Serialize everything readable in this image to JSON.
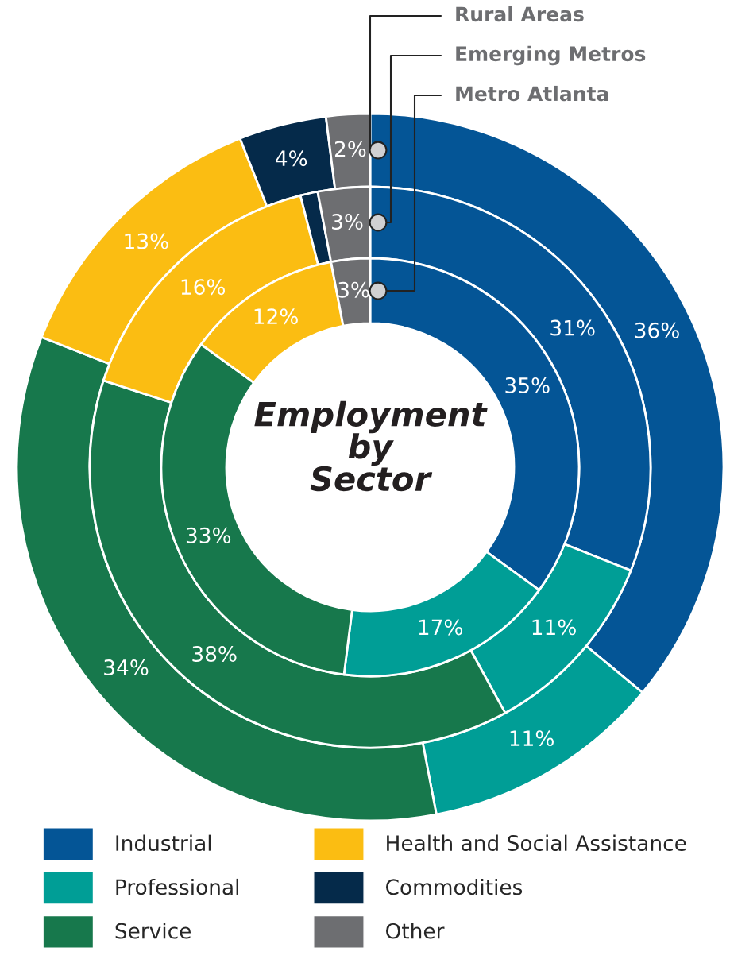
{
  "chart_data": {
    "type": "donut",
    "title": "Employment by Sector",
    "categories": [
      "Industrial",
      "Professional",
      "Service",
      "Health and Social Assistance",
      "Commodities",
      "Other"
    ],
    "colors": [
      "#045596",
      "#009e96",
      "#17784c",
      "#fbbd12",
      "#052a4a",
      "#6d6e71"
    ],
    "series": [
      {
        "name": "Rural Areas",
        "values": [
          36,
          11,
          34,
          13,
          4,
          2
        ],
        "value_labels": [
          "36%",
          "11%",
          "34%",
          "13%",
          "4%",
          "2%"
        ]
      },
      {
        "name": "Emerging Metros",
        "values": [
          31,
          11,
          38,
          16,
          1,
          3
        ],
        "value_labels": [
          "31%",
          "11%",
          "38%",
          "16%",
          null,
          "3%"
        ]
      },
      {
        "name": "Metro Atlanta",
        "values": [
          35,
          17,
          33,
          12,
          null,
          3
        ],
        "value_labels": [
          "35%",
          "17%",
          "33%",
          "12%",
          null,
          "3%"
        ]
      }
    ],
    "legend": "bottom"
  }
}
